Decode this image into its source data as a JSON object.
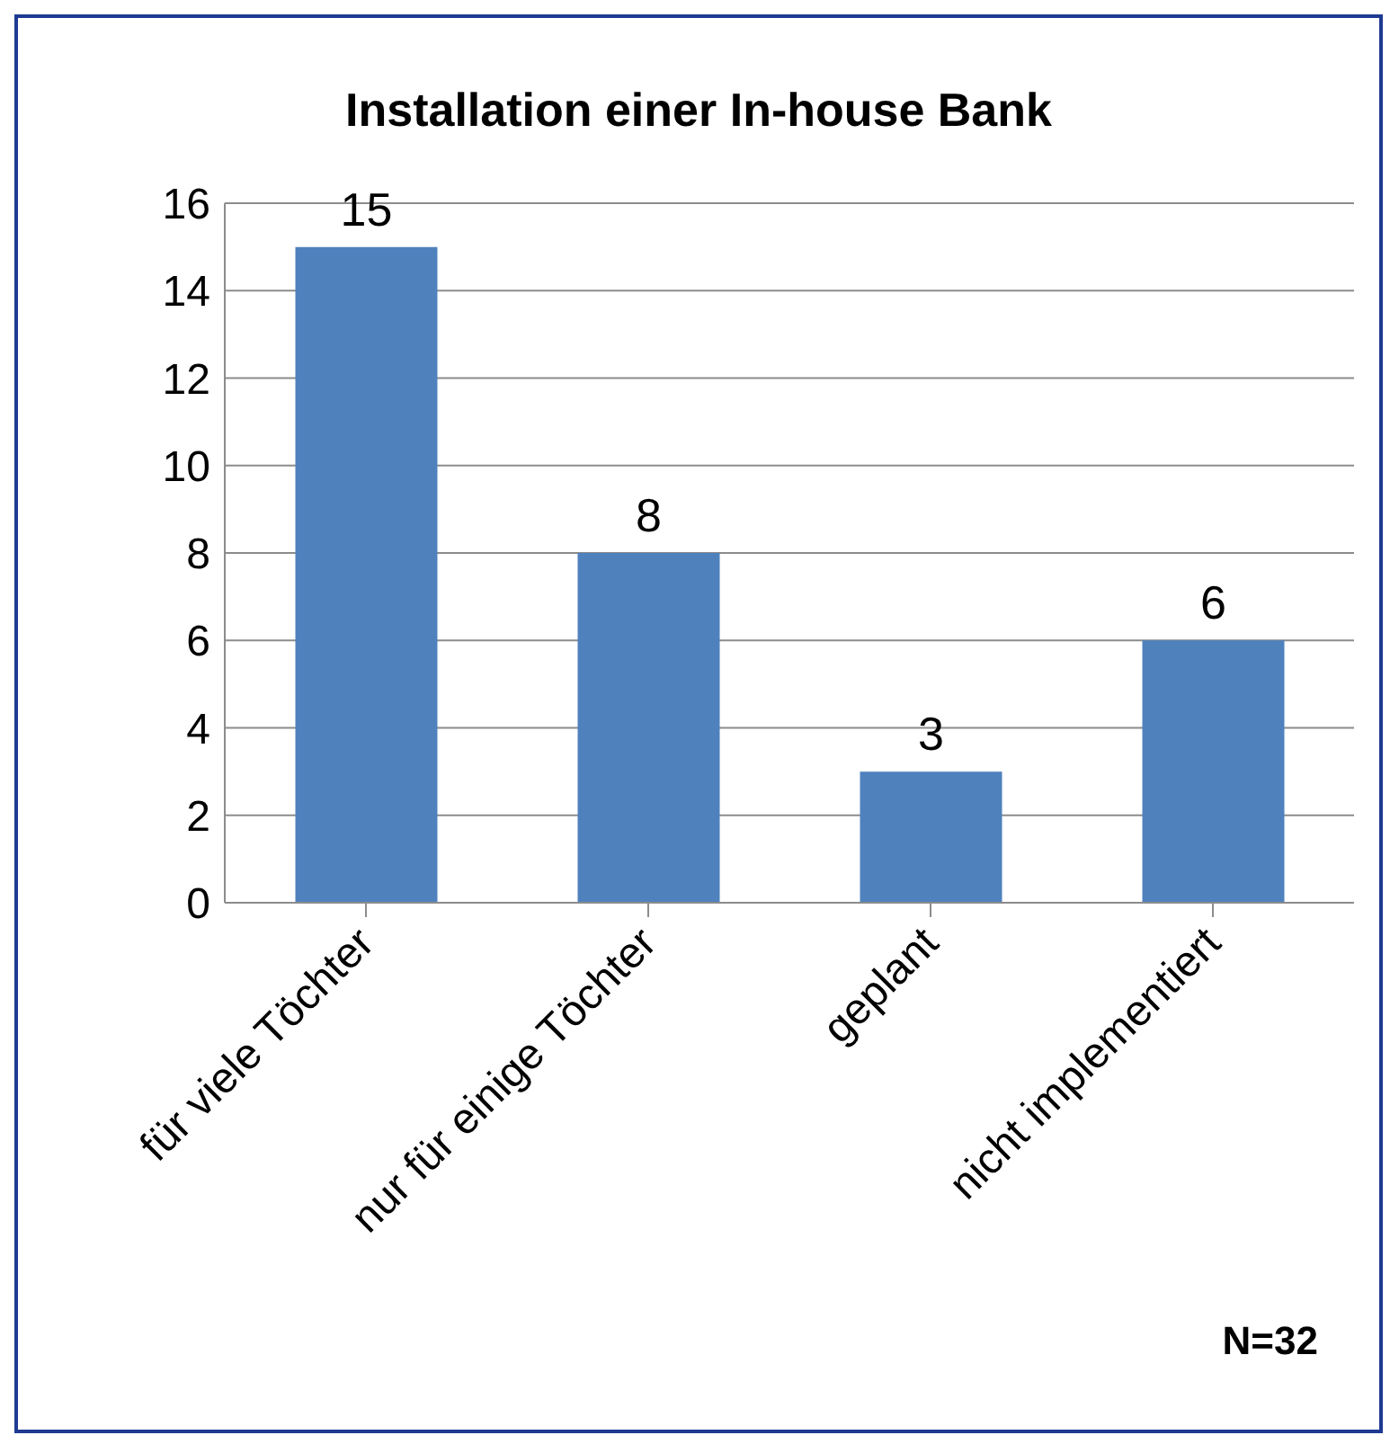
{
  "chart_data": {
    "type": "bar",
    "title": "Installation einer In-house Bank",
    "categories": [
      "für viele Töchter",
      "nur für einige Töchter",
      "geplant",
      "nicht implementiert"
    ],
    "values": [
      15,
      8,
      3,
      6
    ],
    "color": "#4f81bd",
    "ylim": [
      0,
      16
    ],
    "yticks": [
      0,
      2,
      4,
      6,
      8,
      10,
      12,
      14,
      16
    ],
    "grid": "y",
    "data_labels": true,
    "annotations": [
      "N=32"
    ]
  }
}
